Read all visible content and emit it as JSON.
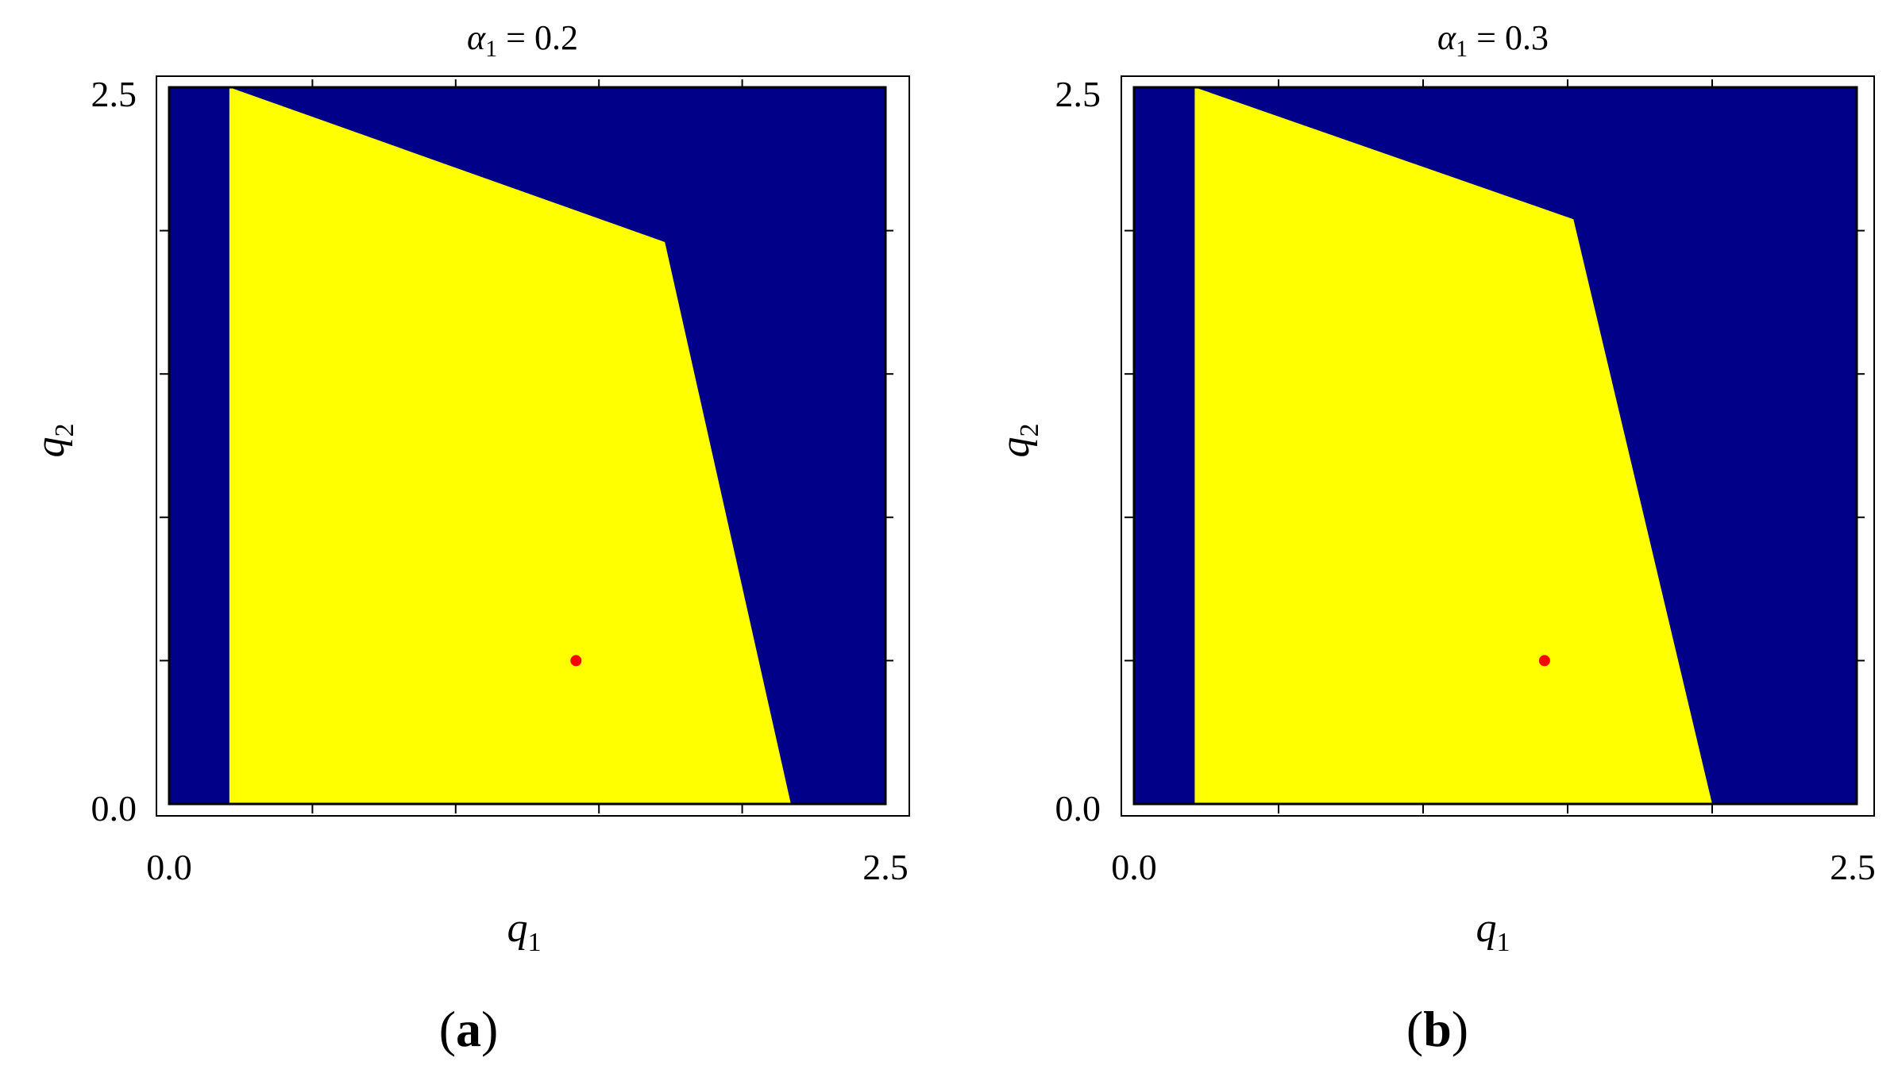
{
  "colors": {
    "region_stable": "#FFFF00",
    "region_unstable": "#000088",
    "equilibrium_point": "#FF0000",
    "frame": "#000000"
  },
  "chart_data": [
    {
      "type": "area",
      "panel_label_open": "(",
      "panel_label_letter": "a",
      "panel_label_close": ")",
      "title_symbol": "α",
      "title_subscript": "1",
      "title_rest": " = 0.2",
      "xlabel_symbol": "q",
      "xlabel_subscript": "1",
      "ylabel_symbol": "q",
      "ylabel_subscript": "2",
      "xlim": [
        0.0,
        2.5
      ],
      "ylim": [
        0.0,
        2.5
      ],
      "x_tick_labels": [
        {
          "value": 0.0,
          "label": "0.0"
        },
        {
          "value": 2.5,
          "label": "2.5"
        }
      ],
      "y_tick_labels": [
        {
          "value": 0.0,
          "label": "0.0"
        },
        {
          "value": 2.5,
          "label": "2.5"
        }
      ],
      "minor_ticks": [
        0.5,
        1.0,
        1.5,
        2.0
      ],
      "region_polygon": [
        [
          0.21,
          0.0
        ],
        [
          0.21,
          2.5
        ],
        [
          1.73,
          1.96
        ],
        [
          2.17,
          0.0
        ]
      ],
      "point": [
        1.42,
        0.5
      ]
    },
    {
      "type": "area",
      "panel_label_open": "(",
      "panel_label_letter": "b",
      "panel_label_close": ")",
      "title_symbol": "α",
      "title_subscript": "1",
      "title_rest": " = 0.3",
      "xlabel_symbol": "q",
      "xlabel_subscript": "1",
      "ylabel_symbol": "q",
      "ylabel_subscript": "2",
      "xlim": [
        0.0,
        2.5
      ],
      "ylim": [
        0.0,
        2.5
      ],
      "x_tick_labels": [
        {
          "value": 0.0,
          "label": "0.0"
        },
        {
          "value": 2.5,
          "label": "2.5"
        }
      ],
      "y_tick_labels": [
        {
          "value": 0.0,
          "label": "0.0"
        },
        {
          "value": 2.5,
          "label": "2.5"
        }
      ],
      "minor_ticks": [
        0.5,
        1.0,
        1.5,
        2.0
      ],
      "region_polygon": [
        [
          0.21,
          0.0
        ],
        [
          0.21,
          2.5
        ],
        [
          1.52,
          2.04
        ],
        [
          2.0,
          0.0
        ]
      ],
      "point": [
        1.42,
        0.5
      ]
    }
  ]
}
